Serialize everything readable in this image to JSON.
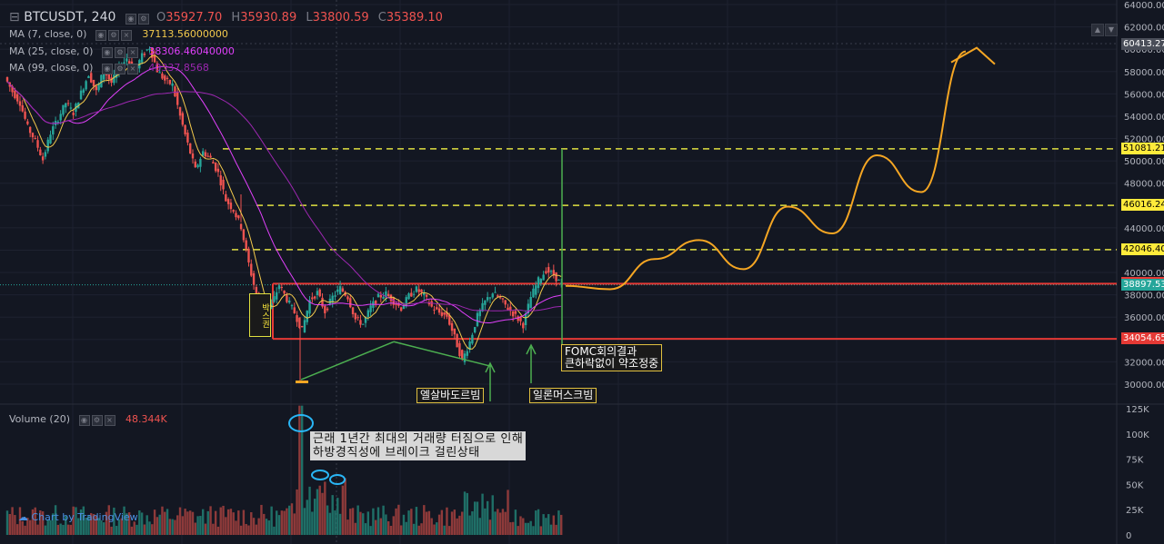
{
  "header": {
    "symbol": "BTCUSDT, 240",
    "open_label": "O",
    "open": "35927.70",
    "high_label": "H",
    "high": "35930.89",
    "low_label": "L",
    "low": "33800.59",
    "close_label": "C",
    "close": "35389.10"
  },
  "indicators": [
    {
      "label": "MA (7, close, 0)",
      "value": "37113.56000000",
      "color": "#f2c94c"
    },
    {
      "label": "MA (25, close, 0)",
      "value": "38306.46040000",
      "color": "#e040fb"
    },
    {
      "label": "MA (99, close, 0)",
      "value": "40337.8568",
      "color": "#9c27b0"
    }
  ],
  "volume_label": "Volume (20)",
  "volume_value": "48.344K",
  "watermark": "Chart by TradingView",
  "price_axis_labels": [
    "64000.00",
    "62000.00",
    "60000.00",
    "58000.00",
    "56000.00",
    "54000.00",
    "52000.00",
    "50000.00",
    "48000.00",
    "46000.00",
    "44000.00",
    "42000.00",
    "40000.00",
    "38000.00",
    "36000.00",
    "34000.00",
    "32000.00",
    "30000.00"
  ],
  "volume_axis_labels": [
    "125K",
    "100K",
    "75K",
    "50K",
    "25K",
    "0"
  ],
  "price_markers": [
    {
      "value": "60413.27",
      "bg": "#4a4e59",
      "fg": "#ffffff"
    },
    {
      "value": "51081.21",
      "bg": "#ffeb3b",
      "fg": "#000000"
    },
    {
      "value": "46016.24",
      "bg": "#ffeb3b",
      "fg": "#000000"
    },
    {
      "value": "42046.40",
      "bg": "#ffeb3b",
      "fg": "#000000"
    },
    {
      "value": "39000.93",
      "bg": "#e53935",
      "fg": "#ffffff"
    },
    {
      "value": "38897.53",
      "bg": "#26a69a",
      "fg": "#ffffff"
    },
    {
      "value": "34054.65",
      "bg": "#e53935",
      "fg": "#ffffff"
    }
  ],
  "colors": {
    "up": "#26a69a",
    "down": "#ef5350",
    "bg": "#131722",
    "resistance": "#e0e040",
    "box": "#e53935",
    "projection": "#f5a623"
  },
  "annotations": {
    "elsalvador": "엘살바도르빔",
    "elon": "일론머스크빔",
    "fomc_line1": "FOMC회의결과",
    "fomc_line2": "큰하락없이 약조정중",
    "note_line1": "근래 1년간 최대의 거래량 터짐으로 인해",
    "note_line2": "하방경직성에 브레이크 걸린상태",
    "box_label": "박스권"
  },
  "chart_data": {
    "type": "candlestick",
    "title": "BTCUSDT, 240",
    "ylim": [
      29000,
      65000
    ],
    "y_ticks": [
      30000,
      32000,
      34000,
      36000,
      38000,
      40000,
      42000,
      44000,
      46000,
      48000,
      50000,
      52000,
      54000,
      56000,
      58000,
      60000,
      62000,
      64000
    ],
    "price_path": [
      57500,
      56200,
      55200,
      53000,
      51800,
      50100,
      52500,
      53800,
      55200,
      54300,
      56100,
      57800,
      56200,
      58100,
      57000,
      58300,
      59200,
      58000,
      59400,
      60200,
      58100,
      57200,
      56800,
      54000,
      51500,
      49200,
      50800,
      50200,
      48900,
      46500,
      45600,
      44100,
      40800,
      38000,
      36200,
      37100,
      38900,
      37600,
      36400,
      34800,
      37500,
      38200,
      36500,
      37800,
      38600,
      37800,
      35800,
      35400,
      36900,
      37800,
      38100,
      37400,
      36800,
      37900,
      38500,
      37900,
      36900,
      36400,
      36100,
      34200,
      32100,
      33800,
      36100,
      37400,
      38200,
      37600,
      36800,
      36100,
      35300,
      37800,
      39300,
      40200,
      39800,
      38900
    ],
    "horizontal_levels": [
      51081.21,
      46016.24,
      42046.4
    ],
    "box_range": [
      34054.65,
      39000.93
    ],
    "current_price": 38897.53,
    "projection_path": [
      38800,
      38500,
      41200,
      42900,
      40300,
      45900,
      43500,
      50500,
      47200,
      59800
    ]
  }
}
